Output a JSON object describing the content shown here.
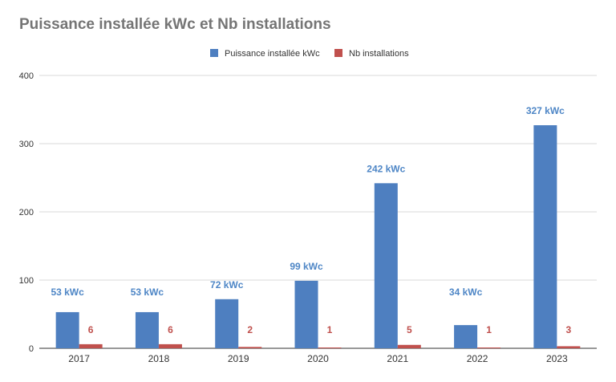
{
  "chart_data": {
    "type": "bar",
    "title": "Puissance installée kWc et Nb installations",
    "xlabel": "",
    "ylabel": "",
    "ylim": [
      0,
      400
    ],
    "yticks": [
      "0",
      "100",
      "200",
      "300",
      "400"
    ],
    "grid": true,
    "legend_position": "top-center",
    "categories": [
      "2017",
      "2018",
      "2019",
      "2020",
      "2021",
      "2022",
      "2023"
    ],
    "series": [
      {
        "name": "Puissance installée kWc",
        "color": "#4e7fc0",
        "label_color": "#4e86c6",
        "values": [
          53,
          53,
          72,
          99,
          242,
          34,
          327
        ],
        "labels": [
          "53 kWc",
          "53 kWc",
          "72 kWc",
          "99 kWc",
          "242 kWc",
          "34 kWc",
          "327 kWc"
        ]
      },
      {
        "name": "Nb installations",
        "color": "#c0504d",
        "label_color": "#c0504d",
        "values": [
          6,
          6,
          2,
          1,
          5,
          1,
          3
        ],
        "labels": [
          "6",
          "6",
          "2",
          "1",
          "5",
          "1",
          "3"
        ]
      }
    ]
  }
}
